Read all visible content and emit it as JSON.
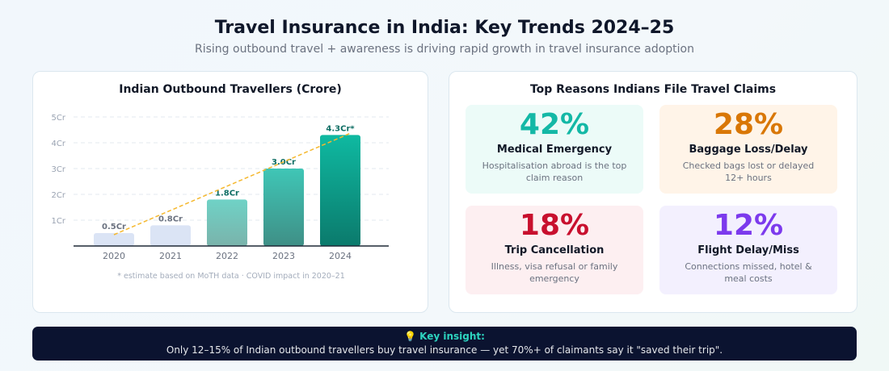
{
  "header": {
    "title": "Travel Insurance in India: Key Trends 2024–25",
    "subtitle": "Rising outbound travel + awareness is driving rapid growth in travel insurance adoption"
  },
  "chart_data": {
    "type": "bar",
    "title": "Indian Outbound Travellers (Crore)",
    "categories": [
      "2020",
      "2021",
      "2022",
      "2023",
      "2024"
    ],
    "values": [
      0.5,
      0.8,
      1.8,
      3.0,
      4.3
    ],
    "value_labels": [
      "0.5Cr",
      "0.8Cr",
      "1.8Cr",
      "3.0Cr",
      "4.3Cr*"
    ],
    "y_ticks": [
      1,
      2,
      3,
      4,
      5
    ],
    "y_tick_labels": [
      "1Cr",
      "2Cr",
      "3Cr",
      "4Cr",
      "5Cr"
    ],
    "ylim": [
      0,
      5
    ],
    "xlabel": "",
    "ylabel": "",
    "grid": true,
    "trend_line": true,
    "footnote": "* estimate based on MoTH data · COVID impact in 2020–21",
    "colors": {
      "light_bar": "#dbe4f5",
      "teal_bar": "#0fb9a1",
      "teal_dark": "#0b7a6c",
      "trend": "#f5b82e",
      "label_muted": "#6b7280",
      "label_teal": "#0f6e64"
    }
  },
  "claims": {
    "title": "Top Reasons Indians File Travel Claims",
    "cards": [
      {
        "pct": "42%",
        "label": "Medical Emergency",
        "desc": "Hospitalisation abroad is the top claim reason",
        "color": "#14b8a6",
        "bg": "#ecfbf8"
      },
      {
        "pct": "28%",
        "label": "Baggage Loss/Delay",
        "desc": "Checked bags lost or delayed 12+ hours",
        "color": "#d97706",
        "bg": "#fff4e8"
      },
      {
        "pct": "18%",
        "label": "Trip Cancellation",
        "desc": "Illness, visa refusal or family emergency",
        "color": "#c8102e",
        "bg": "#fdeff1"
      },
      {
        "pct": "12%",
        "label": "Flight Delay/Miss",
        "desc": "Connections missed, hotel & meal costs",
        "color": "#7c3aed",
        "bg": "#f3f0fe"
      }
    ]
  },
  "insight": {
    "title": "💡 Key insight:",
    "text": "Only 12–15% of Indian outbound travellers buy travel insurance — yet 70%+ of claimants say it \"saved their trip\"."
  }
}
